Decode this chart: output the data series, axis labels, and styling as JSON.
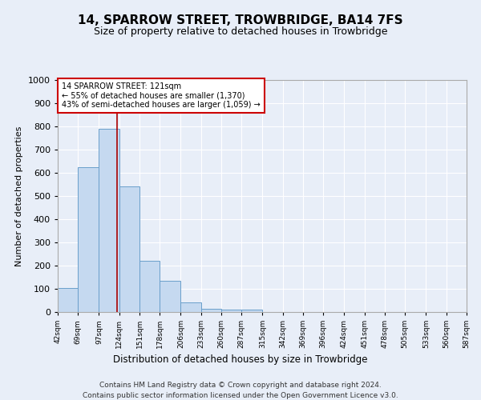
{
  "title": "14, SPARROW STREET, TROWBRIDGE, BA14 7FS",
  "subtitle": "Size of property relative to detached houses in Trowbridge",
  "xlabel": "Distribution of detached houses by size in Trowbridge",
  "ylabel": "Number of detached properties",
  "bar_color": "#c5d9f0",
  "bar_edge_color": "#6a9fcb",
  "background_color": "#e8eef8",
  "plot_bg_color": "#e8eef8",
  "grid_color": "#ffffff",
  "vline_x": 121,
  "vline_color": "#aa0000",
  "bin_edges": [
    42,
    69,
    97,
    124,
    151,
    178,
    206,
    233,
    260,
    287,
    315,
    342,
    369,
    396,
    424,
    451,
    478,
    505,
    533,
    560,
    587
  ],
  "bar_heights": [
    105,
    625,
    790,
    540,
    220,
    135,
    42,
    15,
    10,
    10,
    0,
    0,
    0,
    0,
    0,
    0,
    0,
    0,
    0,
    0
  ],
  "ylim": [
    0,
    1000
  ],
  "yticks": [
    0,
    100,
    200,
    300,
    400,
    500,
    600,
    700,
    800,
    900,
    1000
  ],
  "annotation_line1": "14 SPARROW STREET: 121sqm",
  "annotation_line2": "← 55% of detached houses are smaller (1,370)",
  "annotation_line3": "43% of semi-detached houses are larger (1,059) →",
  "annotation_box_color": "#ffffff",
  "annotation_border_color": "#cc0000",
  "footnote1": "Contains HM Land Registry data © Crown copyright and database right 2024.",
  "footnote2": "Contains public sector information licensed under the Open Government Licence v3.0."
}
